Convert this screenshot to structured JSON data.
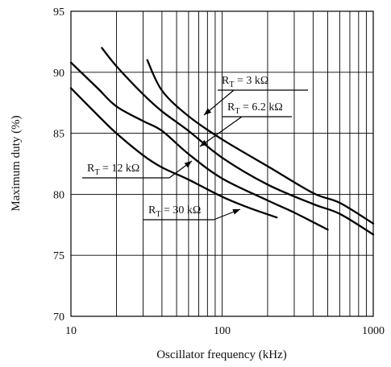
{
  "chart_data": {
    "type": "line",
    "title": "",
    "xlabel": "Oscillator frequency (kHz)",
    "ylabel": "Maximum duty (%)",
    "x_scale": "log",
    "xlim": [
      10,
      1000
    ],
    "ylim": [
      70,
      95
    ],
    "x_ticks": [
      {
        "value": 10,
        "label": "10"
      },
      {
        "value": 100,
        "label": "100"
      },
      {
        "value": 1000,
        "label": "1000"
      }
    ],
    "y_ticks": [
      {
        "value": 70,
        "label": "70"
      },
      {
        "value": 75,
        "label": "75"
      },
      {
        "value": 80,
        "label": "80"
      },
      {
        "value": 85,
        "label": "85"
      },
      {
        "value": 90,
        "label": "90"
      },
      {
        "value": 95,
        "label": "95"
      }
    ],
    "grid": true,
    "series": [
      {
        "label_main": "R",
        "label_sub": "T",
        "label_rest": " = 3 kΩ",
        "points": [
          [
            32,
            91
          ],
          [
            40,
            88.5
          ],
          [
            60,
            86.4
          ],
          [
            100,
            84.5
          ],
          [
            200,
            82.3
          ],
          [
            400,
            80.1
          ],
          [
            600,
            79.3
          ],
          [
            1000,
            77.6
          ]
        ]
      },
      {
        "label_main": "R",
        "label_sub": "T",
        "label_rest": " = 6.2 kΩ",
        "points": [
          [
            16,
            92
          ],
          [
            20,
            90.5
          ],
          [
            30,
            88.2
          ],
          [
            40,
            86.8
          ],
          [
            60,
            85.2
          ],
          [
            100,
            83
          ],
          [
            200,
            80.8
          ],
          [
            400,
            79.2
          ],
          [
            600,
            78.4
          ],
          [
            1000,
            76.7
          ]
        ]
      },
      {
        "label_main": "R",
        "label_sub": "T",
        "label_rest": " = 12 kΩ",
        "points": [
          [
            10,
            90.8
          ],
          [
            15,
            88.7
          ],
          [
            20,
            87.2
          ],
          [
            30,
            86
          ],
          [
            40,
            85.2
          ],
          [
            60,
            83.3
          ],
          [
            100,
            81.3
          ],
          [
            200,
            79.5
          ],
          [
            300,
            78.5
          ],
          [
            500,
            77.1
          ]
        ]
      },
      {
        "label_main": "R",
        "label_sub": "T",
        "label_rest": " = 30 kΩ",
        "points": [
          [
            10,
            88.7
          ],
          [
            15,
            86.5
          ],
          [
            20,
            85
          ],
          [
            30,
            83.2
          ],
          [
            40,
            82.2
          ],
          [
            60,
            81.2
          ],
          [
            100,
            79.8
          ],
          [
            150,
            78.9
          ],
          [
            230,
            78.1
          ]
        ]
      }
    ]
  }
}
